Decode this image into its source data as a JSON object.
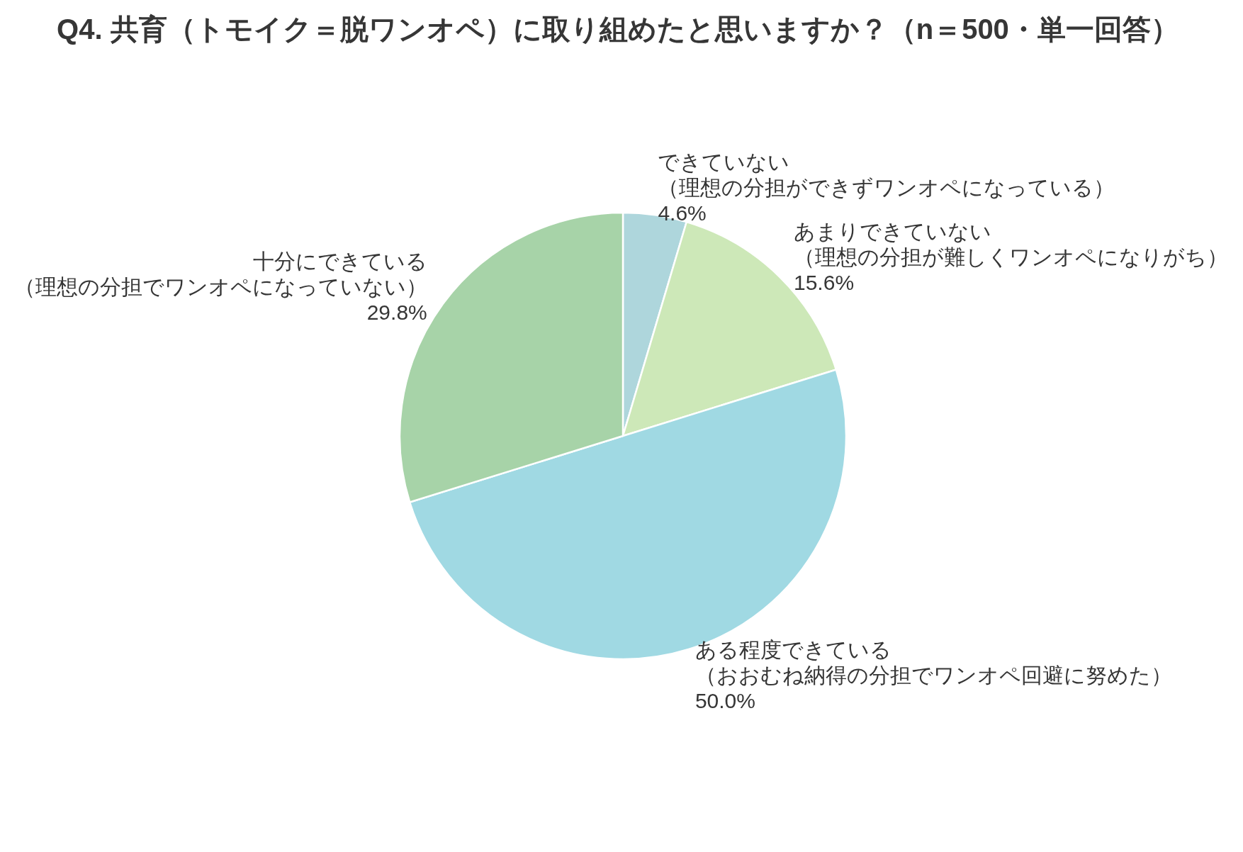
{
  "chart_data": {
    "type": "pie",
    "title": "Q4. 共育（トモイク＝脱ワンオペ）に取り組めたと思いますか？（n＝500・単一回答）",
    "categories": [
      "できていない（理想の分担ができずワンオペになっている）",
      "あまりできていない（理想の分担が難しくワンオペになりがち）",
      "ある程度できている（おおむね納得の分担でワンオペ回避に努めた）",
      "十分にできている（理想の分担でワンオペになっていない）"
    ],
    "values": [
      4.6,
      15.6,
      50.0,
      29.8
    ],
    "colors": [
      "#aed6dc",
      "#cde8b8",
      "#a0d9e3",
      "#a7d3a8"
    ],
    "value_labels": [
      "4.6%",
      "15.6%",
      "50.0%",
      "29.8%"
    ]
  }
}
